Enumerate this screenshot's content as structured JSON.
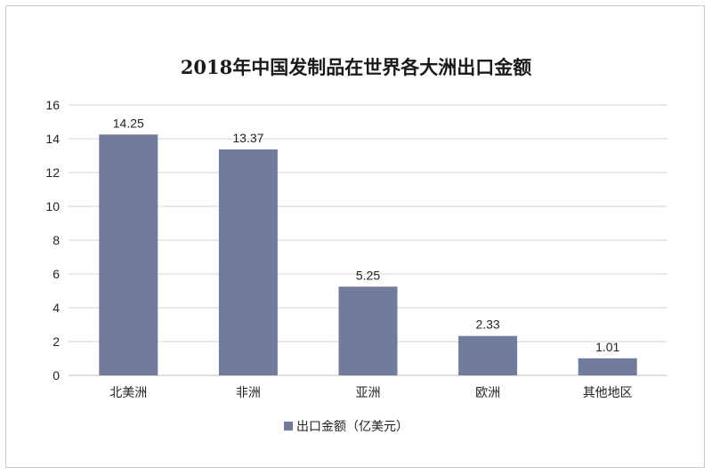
{
  "chart_data": {
    "type": "bar",
    "title": "2018年中国发制品在世界各大洲出口金额",
    "categories": [
      "北美洲",
      "非洲",
      "亚洲",
      "欧洲",
      "其他地区"
    ],
    "series": [
      {
        "name": "出口金额（亿美元）",
        "values": [
          14.25,
          13.37,
          5.25,
          2.33,
          1.01
        ]
      }
    ],
    "data_labels": [
      "14.25",
      "13.37",
      "5.25",
      "2.33",
      "1.01"
    ],
    "ylim": [
      0,
      16
    ],
    "yticks": [
      "0",
      "2",
      "4",
      "6",
      "8",
      "10",
      "12",
      "14",
      "16"
    ],
    "grid": true,
    "legend_position": "bottom-center",
    "bar_color": "#717b9c",
    "grid_color": "#d4d4d4"
  }
}
